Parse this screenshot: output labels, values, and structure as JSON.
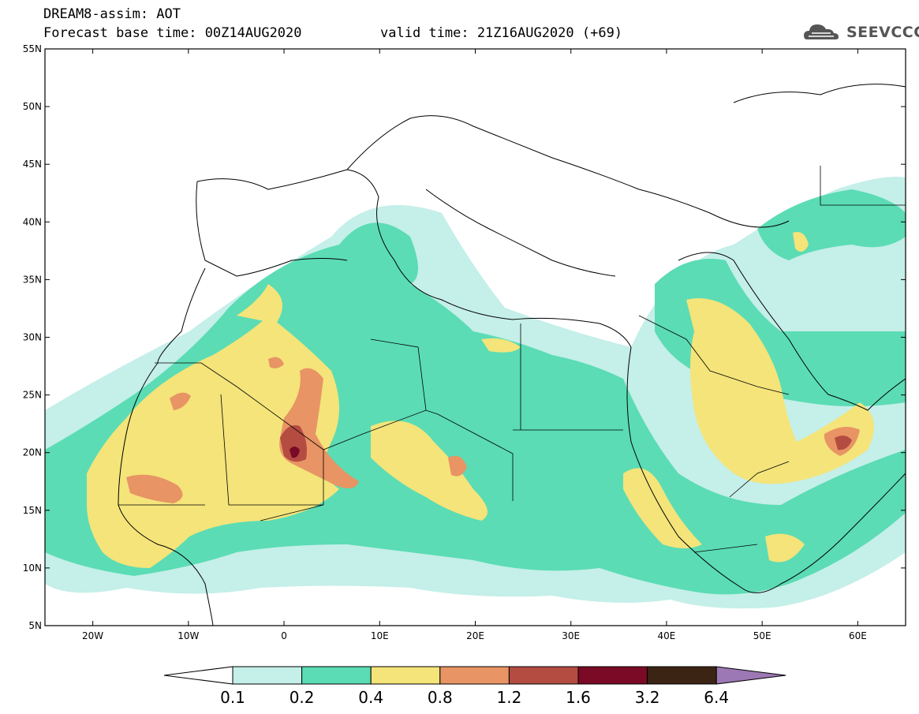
{
  "header": {
    "title": "DREAM8-assim: AOT",
    "base_time": "Forecast base time: 00Z14AUG2020",
    "valid_time": "valid time: 21Z16AUG2020 (+69)"
  },
  "logo": {
    "text": "SEEVCCC",
    "icon": "cloud-icon"
  },
  "map": {
    "variable": "AOT",
    "lon_range": [
      -25,
      65
    ],
    "lat_range": [
      5,
      55
    ],
    "lon_ticks": [
      "20W",
      "10W",
      "0",
      "10E",
      "20E",
      "30E",
      "40E",
      "50E",
      "60E"
    ],
    "lat_ticks": [
      "55N",
      "50N",
      "45N",
      "40N",
      "35N",
      "30N",
      "25N",
      "20N",
      "15N",
      "10N",
      "5N"
    ]
  },
  "colorbar": {
    "labels": [
      "0.1",
      "0.2",
      "0.4",
      "0.8",
      "1.2",
      "1.6",
      "3.2",
      "6.4"
    ],
    "colors": [
      "#c5efe9",
      "#5bdcb4",
      "#f4e47a",
      "#e89464",
      "#b44c42",
      "#7a0a25",
      "#3c2414",
      "#9c78b4"
    ]
  }
}
